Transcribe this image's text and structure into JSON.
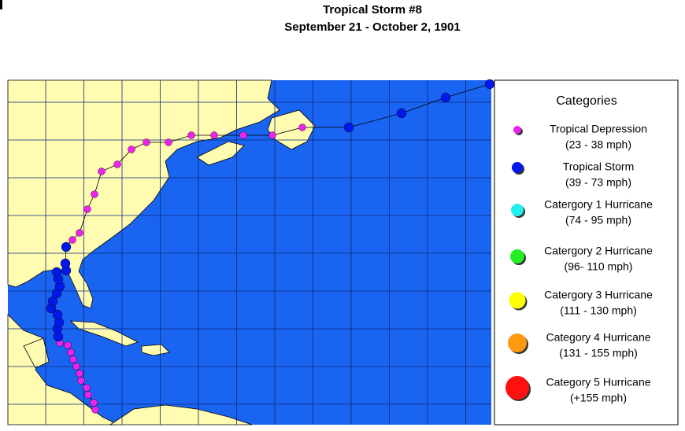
{
  "header": {
    "title": "Tropical Storm #8",
    "subtitle": "September 21 - October 2, 1901"
  },
  "legend": {
    "title": "Categories",
    "entries": [
      {
        "name": "Tropical Depression",
        "range": "(23 - 38 mph)",
        "color": "#ee22ee"
      },
      {
        "name": "Tropical Storm",
        "range": "(39 - 73 mph)",
        "color": "#0018e8"
      },
      {
        "name": "Catergory 1 Hurricane",
        "range": "(74 - 95 mph)",
        "color": "#22f0f0"
      },
      {
        "name": "Catergory 2 Hurricane",
        "range": "(96- 110 mph)",
        "color": "#22ee22"
      },
      {
        "name": "Catergory 3 Hurricane",
        "range": "(111 - 130 mph)",
        "color": "#ffff00"
      },
      {
        "name": "Category 4 Hurricane",
        "range": "(131 - 155 mph)",
        "color": "#ff9a10"
      },
      {
        "name": "Category 5 Hurricane",
        "range": "(+155 mph)",
        "color": "#ff1010"
      }
    ]
  }
}
